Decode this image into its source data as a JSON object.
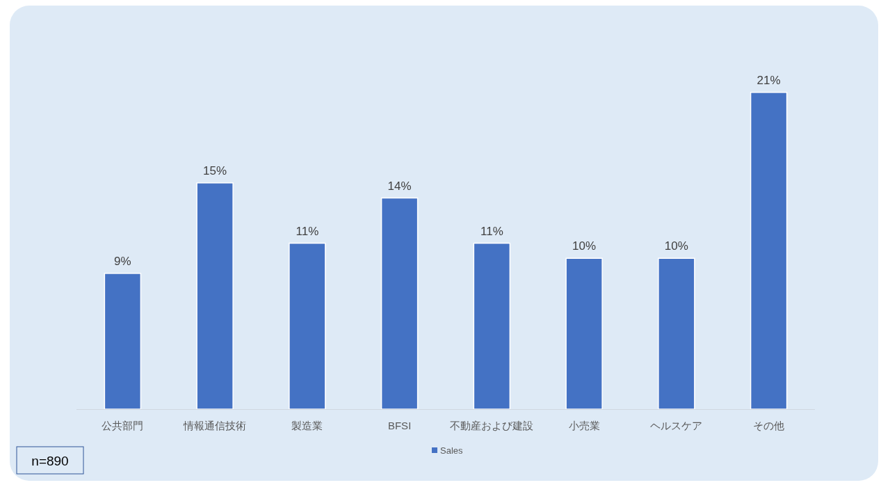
{
  "chart_data": {
    "type": "bar",
    "categories": [
      "公共部門",
      "情報通信技術",
      "製造業",
      "BFSI",
      "不動産および建設",
      "小売業",
      "ヘルスケア",
      "その他"
    ],
    "series": [
      {
        "name": "Sales",
        "color": "#4472c4",
        "values": [
          9,
          15,
          11,
          14,
          11,
          10,
          10,
          21
        ],
        "value_labels": [
          "9%",
          "15%",
          "11%",
          "14%",
          "11%",
          "10%",
          "10%",
          "21%"
        ]
      }
    ],
    "legend": "bottom",
    "annotations": [
      "n=890"
    ]
  }
}
